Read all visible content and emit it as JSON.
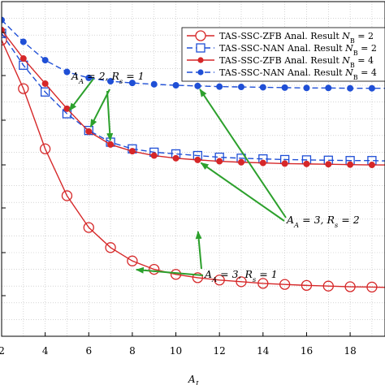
{
  "chart_data": {
    "type": "line",
    "xlabel": "A_J",
    "xlim": [
      2,
      19.6
    ],
    "x_ticks": [
      "2",
      "4",
      "6",
      "8",
      "10",
      "12",
      "14",
      "16",
      "18"
    ],
    "y_relative_range": [
      0,
      1
    ],
    "grid": true,
    "legend_position": "top-right",
    "x": [
      2,
      3,
      4,
      5,
      6,
      7,
      8,
      9,
      10,
      11,
      12,
      13,
      14,
      15,
      16,
      17,
      18,
      19,
      19.6
    ],
    "series": [
      {
        "name": "TAS-SSC-ZFB Anal. Result N_B = 2",
        "color": "#d62728",
        "line": "solid",
        "marker": "open-circle",
        "values": [
          0.885,
          0.74,
          0.56,
          0.42,
          0.325,
          0.265,
          0.225,
          0.2,
          0.185,
          0.175,
          0.168,
          0.163,
          0.158,
          0.155,
          0.152,
          0.15,
          0.148,
          0.147,
          0.146
        ]
      },
      {
        "name": "TAS-SSC-NAN Anal. Result N_B = 2",
        "color": "#1f4fd6",
        "line": "dashed",
        "marker": "open-square",
        "values": [
          0.905,
          0.81,
          0.73,
          0.665,
          0.615,
          0.58,
          0.56,
          0.55,
          0.545,
          0.54,
          0.535,
          0.532,
          0.53,
          0.528,
          0.527,
          0.526,
          0.525,
          0.525,
          0.524
        ]
      },
      {
        "name": "TAS-SSC-ZFB Anal. Result N_B = 4",
        "color": "#d62728",
        "line": "solid",
        "marker": "filled-dot",
        "values": [
          0.915,
          0.83,
          0.755,
          0.68,
          0.612,
          0.573,
          0.553,
          0.54,
          0.532,
          0.527,
          0.523,
          0.52,
          0.518,
          0.516,
          0.515,
          0.514,
          0.513,
          0.512,
          0.512
        ]
      },
      {
        "name": "TAS-SSC-NAN Anal. Result N_B = 4",
        "color": "#1f4fd6",
        "line": "dashed",
        "marker": "filled-dot",
        "values": [
          0.945,
          0.88,
          0.825,
          0.79,
          0.772,
          0.762,
          0.757,
          0.753,
          0.75,
          0.748,
          0.746,
          0.745,
          0.744,
          0.743,
          0.742,
          0.742,
          0.741,
          0.741,
          0.741
        ]
      }
    ],
    "legend": [
      {
        "label": "TAS-SSC-ZFB Anal. Result ",
        "sub": "N",
        "subscript": "B",
        "tail": " = 2"
      },
      {
        "label": "TAS-SSC-NAN Anal. Result ",
        "sub": "N",
        "subscript": "B",
        "tail": " = 2"
      },
      {
        "label": "TAS-SSC-ZFB Anal. Result ",
        "sub": "N",
        "subscript": "B",
        "tail": " = 4"
      },
      {
        "label": "TAS-SSC-NAN Anal. Result ",
        "sub": "N",
        "subscript": "B",
        "tail": " = 4"
      }
    ],
    "annotations": [
      {
        "text": "A_A = 2, R_s = 1",
        "targets": [
          [
            5,
            0.665
          ],
          [
            6,
            0.615
          ],
          [
            7,
            0.573
          ]
        ]
      },
      {
        "text": "A_A = 3, R_s = 2",
        "targets": [
          [
            11,
            0.748
          ],
          [
            11,
            0.525
          ]
        ]
      },
      {
        "text": "A_A = 3, R_s = 1",
        "targets": [
          [
            11,
            0.325
          ],
          [
            8,
            0.2
          ]
        ]
      }
    ]
  }
}
